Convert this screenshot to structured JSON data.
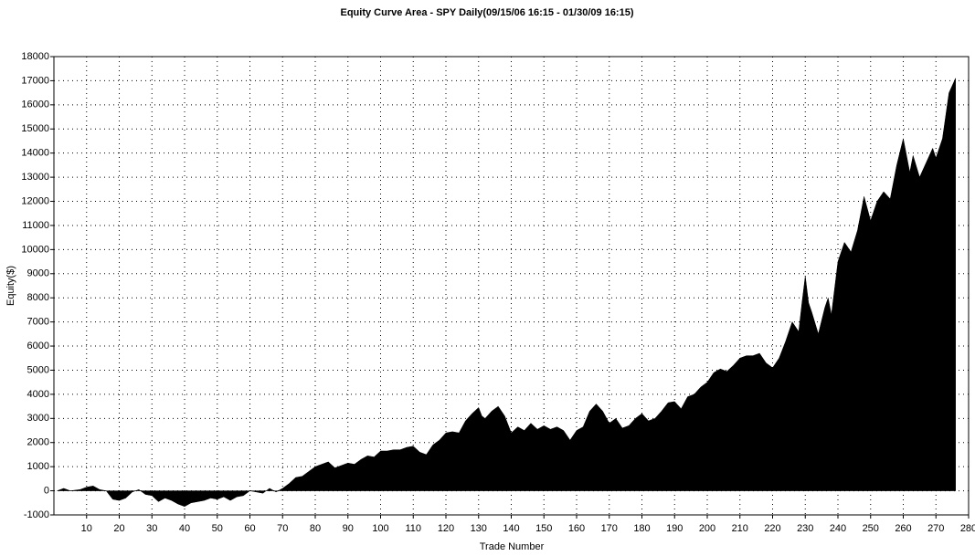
{
  "chart_data": {
    "type": "area",
    "title": "Equity Curve Area - SPY Daily(09/15/06 16:15 - 01/30/09 16:15)",
    "x_label": "Trade Number",
    "y_label": "Equity($)",
    "color": "#000000",
    "grid": true,
    "xlim": [
      0,
      280
    ],
    "xticks": [
      10,
      20,
      30,
      40,
      50,
      60,
      70,
      80,
      90,
      100,
      110,
      120,
      130,
      140,
      150,
      160,
      170,
      180,
      190,
      200,
      210,
      220,
      230,
      240,
      250,
      260,
      270,
      280
    ],
    "ylim": [
      -1000,
      18000
    ],
    "yticks": [
      -1000,
      0,
      1000,
      2000,
      3000,
      4000,
      5000,
      6000,
      7000,
      8000,
      9000,
      10000,
      11000,
      12000,
      13000,
      14000,
      15000,
      16000,
      17000,
      18000
    ],
    "x": [
      1,
      3,
      5,
      8,
      10,
      12,
      14,
      16,
      18,
      20,
      22,
      24,
      26,
      28,
      30,
      32,
      34,
      36,
      38,
      40,
      42,
      44,
      46,
      48,
      50,
      52,
      54,
      56,
      58,
      60,
      62,
      64,
      66,
      68,
      70,
      72,
      74,
      76,
      78,
      80,
      82,
      84,
      86,
      88,
      90,
      92,
      94,
      96,
      98,
      100,
      102,
      104,
      106,
      108,
      110,
      112,
      114,
      116,
      118,
      120,
      122,
      124,
      126,
      128,
      130,
      131,
      132,
      134,
      136,
      138,
      140,
      142,
      144,
      146,
      148,
      150,
      152,
      154,
      156,
      158,
      160,
      162,
      164,
      166,
      168,
      170,
      172,
      174,
      176,
      178,
      180,
      182,
      184,
      186,
      188,
      190,
      192,
      194,
      196,
      198,
      200,
      202,
      204,
      206,
      208,
      210,
      212,
      214,
      216,
      218,
      220,
      222,
      224,
      226,
      228,
      229,
      230,
      231,
      232,
      234,
      236,
      237,
      238,
      240,
      242,
      244,
      246,
      248,
      250,
      252,
      254,
      256,
      258,
      260,
      262,
      263,
      265,
      267,
      269,
      270,
      272,
      274,
      276
    ],
    "values": [
      0,
      100,
      0,
      50,
      150,
      200,
      50,
      0,
      -350,
      -400,
      -300,
      -50,
      50,
      -150,
      -200,
      -450,
      -300,
      -400,
      -550,
      -650,
      -500,
      -450,
      -400,
      -300,
      -350,
      -250,
      -400,
      -250,
      -200,
      0,
      -50,
      -100,
      100,
      -50,
      100,
      300,
      550,
      600,
      800,
      1000,
      1100,
      1200,
      950,
      1050,
      1150,
      1100,
      1300,
      1450,
      1400,
      1650,
      1650,
      1700,
      1700,
      1800,
      1850,
      1600,
      1500,
      1900,
      2100,
      2400,
      2450,
      2400,
      2900,
      3200,
      3450,
      3100,
      3000,
      3300,
      3500,
      3100,
      2400,
      2650,
      2500,
      2800,
      2550,
      2700,
      2550,
      2650,
      2500,
      2100,
      2500,
      2650,
      3300,
      3600,
      3300,
      2800,
      3000,
      2600,
      2700,
      3000,
      3200,
      2900,
      3000,
      3300,
      3650,
      3700,
      3400,
      3900,
      4000,
      4300,
      4500,
      4900,
      5050,
      4950,
      5200,
      5500,
      5600,
      5600,
      5700,
      5300,
      5100,
      5500,
      6200,
      7000,
      6600,
      7800,
      8900,
      7800,
      7400,
      6500,
      7600,
      8000,
      7300,
      9500,
      10300,
      9900,
      10800,
      12200,
      11200,
      12000,
      12400,
      12100,
      13500,
      14600,
      13200,
      13900,
      13000,
      13600,
      14200,
      13800,
      14600,
      16500,
      17100
    ]
  }
}
